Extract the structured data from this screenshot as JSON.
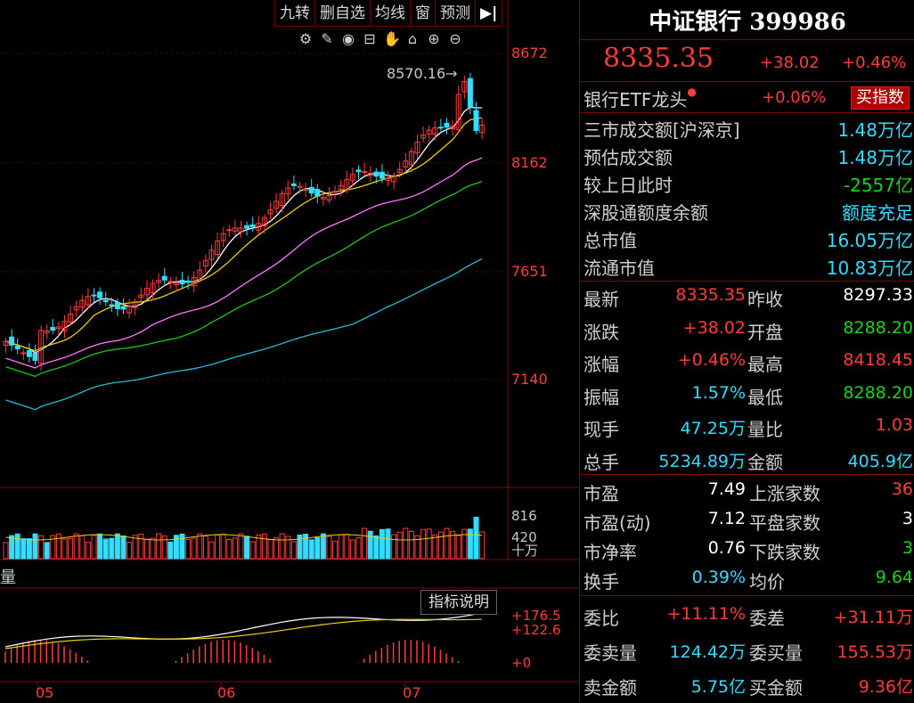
{
  "toolbar": {
    "items": [
      "九转",
      "删自选",
      "均线",
      "窗",
      "预测",
      "▶|"
    ]
  },
  "tools": [
    "gear-icon",
    "pen-icon",
    "eye-icon",
    "box-icon",
    "hand-icon",
    "lock-icon",
    "zoom-in-icon",
    "zoom-out-icon"
  ],
  "chart": {
    "price_axis": [
      "8672",
      "8162",
      "7651",
      "7140"
    ],
    "high_marker": "8570.16",
    "volume_axis": [
      "816",
      "420",
      "十万"
    ],
    "macd_axis": [
      "+176.5",
      "+122.6",
      "+0"
    ],
    "month_labels": [
      "05",
      "06",
      "07"
    ],
    "indicator_button": "指标说明",
    "left_fragment": "量"
  },
  "header": {
    "title": "中证银行 399986",
    "price": "8335.35",
    "change": "+38.02",
    "change_pct": "+0.46%"
  },
  "etf": {
    "label": "银行ETF龙头",
    "change": "+0.06%",
    "buy_button": "买指数"
  },
  "market": [
    {
      "label": "三市成交额[沪深京]",
      "value": "1.48万亿",
      "color": "cyan"
    },
    {
      "label": "预估成交额",
      "value": "1.48万亿",
      "color": "cyan"
    },
    {
      "label": "较上日此时",
      "value": "-2557亿",
      "color": "green"
    },
    {
      "label": "深股通额度余额",
      "value": "额度充足",
      "color": "cyan"
    },
    {
      "label": "总市值",
      "value": "16.05万亿",
      "color": "cyan"
    },
    {
      "label": "流通市值",
      "value": "10.83万亿",
      "color": "cyan"
    }
  ],
  "quote": [
    {
      "l1": "最新",
      "v1": "8335.35",
      "c1": "red",
      "l2": "昨收",
      "v2": "8297.33",
      "c2": "white"
    },
    {
      "l1": "涨跌",
      "v1": "+38.02",
      "c1": "red",
      "l2": "开盘",
      "v2": "8288.20",
      "c2": "green"
    },
    {
      "l1": "涨幅",
      "v1": "+0.46%",
      "c1": "red",
      "l2": "最高",
      "v2": "8418.45",
      "c2": "red"
    },
    {
      "l1": "振幅",
      "v1": "1.57%",
      "c1": "cyan",
      "l2": "最低",
      "v2": "8288.20",
      "c2": "green"
    },
    {
      "l1": "现手",
      "v1": "47.25万",
      "c1": "cyan",
      "l2": "量比",
      "v2": "1.03",
      "c2": "red"
    },
    {
      "l1": "总手",
      "v1": "5234.89万",
      "c1": "cyan",
      "l2": "金额",
      "v2": "405.9亿",
      "c2": "cyan"
    }
  ],
  "stats": [
    {
      "l1": "市盈",
      "v1": "7.49",
      "c1": "white",
      "l2": "上涨家数",
      "v2": "36",
      "c2": "red"
    },
    {
      "l1": "市盈(动)",
      "v1": "7.12",
      "c1": "white",
      "l2": "平盘家数",
      "v2": "3",
      "c2": "white"
    },
    {
      "l1": "市净率",
      "v1": "0.76",
      "c1": "white",
      "l2": "下跌家数",
      "v2": "3",
      "c2": "green"
    },
    {
      "l1": "换手",
      "v1": "0.39%",
      "c1": "cyan",
      "l2": "均价",
      "v2": "9.64",
      "c2": "green"
    }
  ],
  "orders": [
    {
      "l1": "委比",
      "v1": "+11.11%",
      "c1": "red",
      "l2": "委差",
      "v2": "+31.11万",
      "c2": "red"
    },
    {
      "l1": "委卖量",
      "v1": "124.42万",
      "c1": "cyan",
      "l2": "委买量",
      "v2": "155.53万",
      "c2": "red"
    },
    {
      "l1": "卖金额",
      "v1": "5.75亿",
      "c1": "cyan",
      "l2": "买金额",
      "v2": "9.36亿",
      "c2": "red"
    }
  ],
  "colors": {
    "up": "#ff3b3b",
    "down": "#33ddff",
    "ma5": "#ffffff",
    "ma10": "#e8d200",
    "ma20": "#ff77ff",
    "ma30": "#19c819",
    "ma60": "#22bbd9",
    "grid": "#8a0000"
  }
}
